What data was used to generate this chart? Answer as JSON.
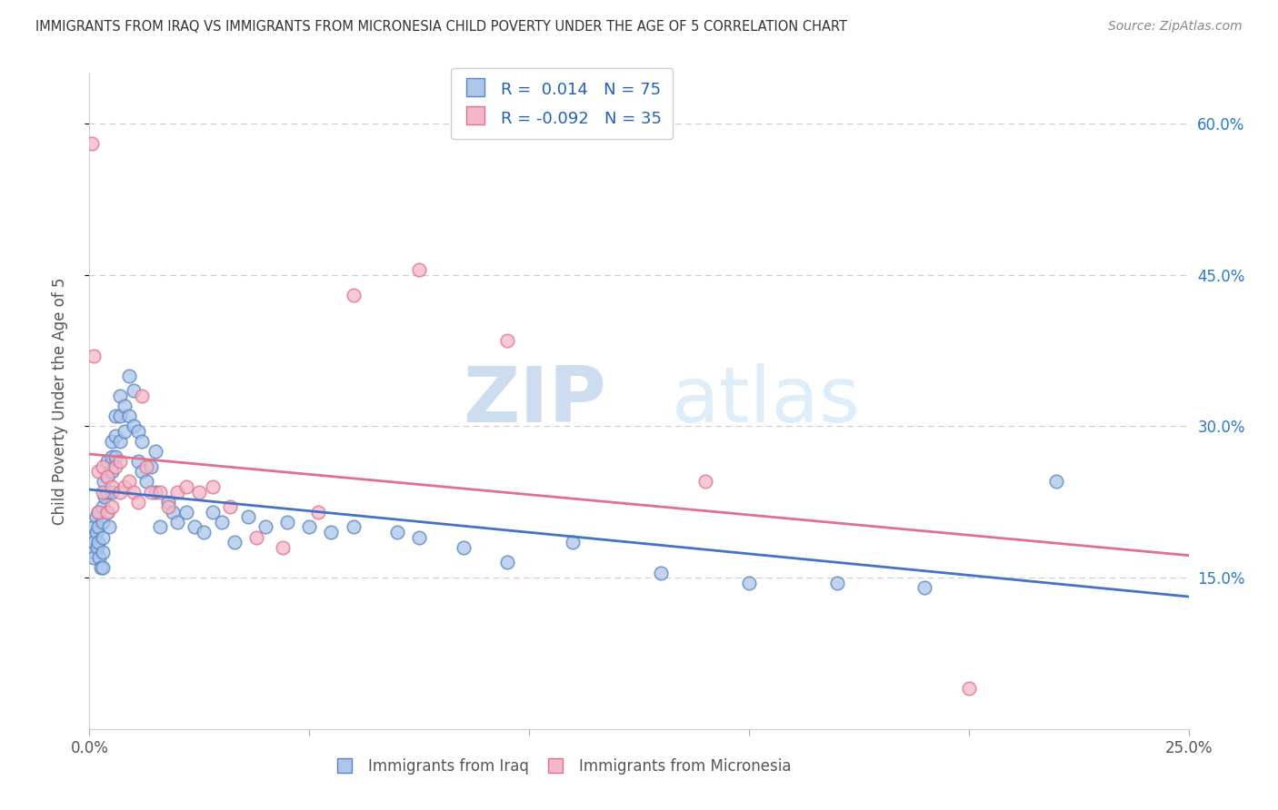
{
  "title": "IMMIGRANTS FROM IRAQ VS IMMIGRANTS FROM MICRONESIA CHILD POVERTY UNDER THE AGE OF 5 CORRELATION CHART",
  "source": "Source: ZipAtlas.com",
  "ylabel": "Child Poverty Under the Age of 5",
  "xlim": [
    0.0,
    0.25
  ],
  "ylim": [
    0.0,
    0.65
  ],
  "yticks": [
    0.15,
    0.3,
    0.45,
    0.6
  ],
  "ytick_labels": [
    "15.0%",
    "30.0%",
    "45.0%",
    "60.0%"
  ],
  "xticks": [
    0.0,
    0.05,
    0.1,
    0.15,
    0.2,
    0.25
  ],
  "xtick_labels": [
    "0.0%",
    "",
    "",
    "",
    "",
    "25.0%"
  ],
  "iraq_R": 0.014,
  "iraq_N": 75,
  "micronesia_R": -0.092,
  "micronesia_N": 35,
  "iraq_color": "#aec6e8",
  "micronesia_color": "#f5b8c8",
  "iraq_edge_color": "#5585c5",
  "micronesia_edge_color": "#e07090",
  "iraq_line_color": "#4472c4",
  "micronesia_line_color": "#e07090",
  "legend_r_color": "#2060c0",
  "iraq_x": [
    0.0005,
    0.0008,
    0.001,
    0.001,
    0.001,
    0.0015,
    0.0015,
    0.0018,
    0.002,
    0.002,
    0.002,
    0.0022,
    0.0025,
    0.003,
    0.003,
    0.003,
    0.003,
    0.003,
    0.0032,
    0.0035,
    0.004,
    0.004,
    0.004,
    0.004,
    0.0045,
    0.005,
    0.005,
    0.005,
    0.005,
    0.006,
    0.006,
    0.006,
    0.007,
    0.007,
    0.007,
    0.008,
    0.008,
    0.009,
    0.009,
    0.01,
    0.01,
    0.011,
    0.011,
    0.012,
    0.012,
    0.013,
    0.014,
    0.015,
    0.015,
    0.016,
    0.018,
    0.019,
    0.02,
    0.022,
    0.024,
    0.026,
    0.028,
    0.03,
    0.033,
    0.036,
    0.04,
    0.045,
    0.05,
    0.055,
    0.06,
    0.07,
    0.075,
    0.085,
    0.095,
    0.11,
    0.13,
    0.15,
    0.17,
    0.19,
    0.22
  ],
  "iraq_y": [
    0.19,
    0.175,
    0.2,
    0.185,
    0.17,
    0.21,
    0.195,
    0.18,
    0.215,
    0.2,
    0.185,
    0.17,
    0.16,
    0.22,
    0.205,
    0.19,
    0.175,
    0.16,
    0.245,
    0.23,
    0.265,
    0.25,
    0.235,
    0.215,
    0.2,
    0.285,
    0.27,
    0.255,
    0.235,
    0.31,
    0.29,
    0.27,
    0.33,
    0.31,
    0.285,
    0.32,
    0.295,
    0.35,
    0.31,
    0.335,
    0.3,
    0.295,
    0.265,
    0.285,
    0.255,
    0.245,
    0.26,
    0.275,
    0.235,
    0.2,
    0.225,
    0.215,
    0.205,
    0.215,
    0.2,
    0.195,
    0.215,
    0.205,
    0.185,
    0.21,
    0.2,
    0.205,
    0.2,
    0.195,
    0.2,
    0.195,
    0.19,
    0.18,
    0.165,
    0.185,
    0.155,
    0.145,
    0.145,
    0.14,
    0.245
  ],
  "micronesia_x": [
    0.0005,
    0.001,
    0.002,
    0.002,
    0.003,
    0.003,
    0.004,
    0.004,
    0.005,
    0.005,
    0.006,
    0.007,
    0.007,
    0.008,
    0.009,
    0.01,
    0.011,
    0.012,
    0.013,
    0.014,
    0.016,
    0.018,
    0.02,
    0.022,
    0.025,
    0.028,
    0.032,
    0.038,
    0.044,
    0.052,
    0.06,
    0.075,
    0.095,
    0.14,
    0.2
  ],
  "micronesia_y": [
    0.58,
    0.37,
    0.255,
    0.215,
    0.26,
    0.235,
    0.25,
    0.215,
    0.24,
    0.22,
    0.26,
    0.265,
    0.235,
    0.24,
    0.245,
    0.235,
    0.225,
    0.33,
    0.26,
    0.235,
    0.235,
    0.22,
    0.235,
    0.24,
    0.235,
    0.24,
    0.22,
    0.19,
    0.18,
    0.215,
    0.43,
    0.455,
    0.385,
    0.245,
    0.04
  ],
  "watermark_zip": "ZIP",
  "watermark_atlas": "atlas",
  "background_color": "#ffffff",
  "grid_color": "#cccccc"
}
